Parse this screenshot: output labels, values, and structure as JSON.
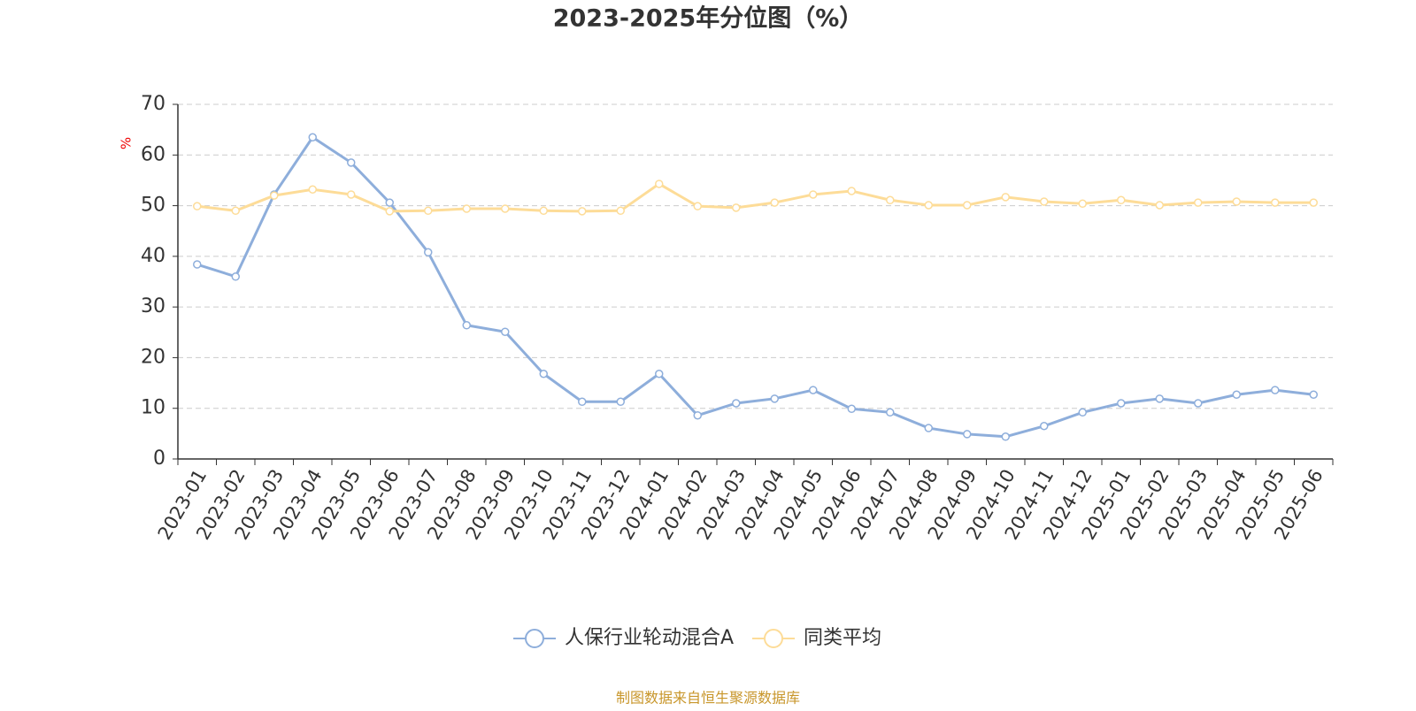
{
  "chart_data": {
    "type": "line",
    "title": "2023-2025年分位图（%）",
    "y_label": "%",
    "source": "制图数据来自恒生聚源数据库",
    "categories": [
      "2023-01",
      "2023-02",
      "2023-03",
      "2023-04",
      "2023-05",
      "2023-06",
      "2023-07",
      "2023-08",
      "2023-09",
      "2023-10",
      "2023-11",
      "2023-12",
      "2024-01",
      "2024-02",
      "2024-03",
      "2024-04",
      "2024-05",
      "2024-06",
      "2024-07",
      "2024-08",
      "2024-09",
      "2024-10",
      "2024-11",
      "2024-12",
      "2025-01",
      "2025-02",
      "2025-03",
      "2025-04",
      "2025-05",
      "2025-06"
    ],
    "series": [
      {
        "name": "人保行业轮动混合A",
        "color": "#8eaedb",
        "values": [
          38.4,
          36.0,
          52.2,
          63.5,
          58.5,
          50.6,
          40.8,
          26.4,
          25.1,
          16.8,
          11.3,
          11.3,
          16.8,
          8.6,
          11.0,
          11.9,
          13.6,
          9.9,
          9.2,
          6.1,
          4.9,
          4.4,
          6.5,
          9.2,
          11.0,
          11.9,
          11.0,
          12.7,
          13.6,
          12.7
        ]
      },
      {
        "name": "同类平均",
        "color": "#fddc98",
        "values": [
          49.9,
          49.0,
          52.0,
          53.2,
          52.2,
          48.9,
          49.0,
          49.4,
          49.4,
          49.0,
          48.9,
          49.0,
          54.3,
          49.9,
          49.6,
          50.6,
          52.2,
          52.9,
          51.1,
          50.1,
          50.1,
          51.7,
          50.8,
          50.4,
          51.1,
          50.1,
          50.6,
          50.8,
          50.6,
          50.6
        ]
      }
    ],
    "ylim": [
      0,
      70
    ],
    "yticks": [
      0,
      10,
      20,
      30,
      40,
      50,
      60,
      70
    ],
    "grid": true
  }
}
